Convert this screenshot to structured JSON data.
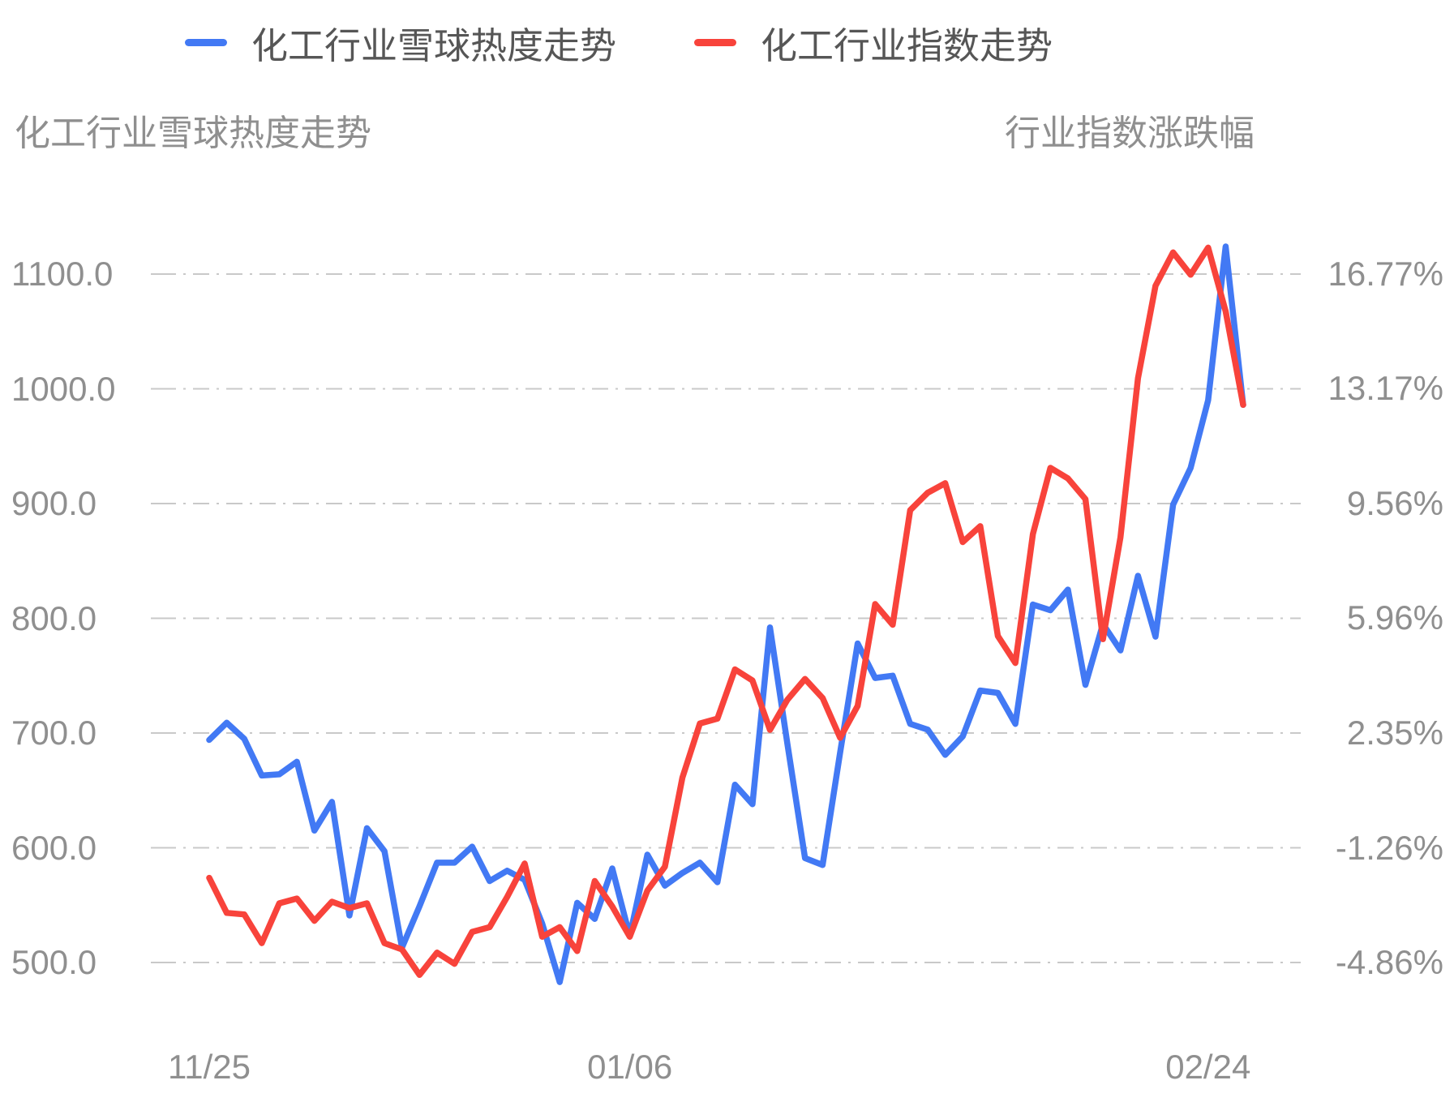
{
  "colors": {
    "heat_line": "#4279F4",
    "index_line": "#F8433B",
    "grid": "#c9c9c9",
    "tick_text": "#8f8f8f",
    "legend_text": "#565656"
  },
  "legend": {
    "items": [
      {
        "label": "化工行业雪球热度走势",
        "color": "#4279F4"
      },
      {
        "label": "化工行业指数走势",
        "color": "#F8433B"
      }
    ]
  },
  "left_axis_title": "化工行业雪球热度走势",
  "right_axis_title": "行业指数涨跌幅",
  "chart_data": {
    "type": "line",
    "title": "",
    "xlabel": "",
    "ylabel_left": "化工行业雪球热度走势",
    "ylabel_right": "行业指数涨跌幅",
    "grid": true,
    "grid_style": "dash-dot",
    "legend_position": "top",
    "x_tick_labels": [
      {
        "label": "11/25",
        "index": 0
      },
      {
        "label": "01/06",
        "index": 24
      },
      {
        "label": "02/24",
        "index": 57
      }
    ],
    "left_axis": {
      "tick_labels": [
        "1100.0",
        "1000.0",
        "900.0",
        "800.0",
        "700.0",
        "600.0",
        "500.0"
      ],
      "tick_values": [
        1100,
        1000,
        900,
        800,
        700,
        600,
        500
      ],
      "range": [
        500,
        1100
      ]
    },
    "right_axis": {
      "tick_labels": [
        "16.77%",
        "13.17%",
        "9.56%",
        "5.96%",
        "2.35%",
        "-1.26%",
        "-4.86%"
      ],
      "tick_values": [
        16.77,
        13.17,
        9.56,
        5.96,
        2.35,
        -1.26,
        -4.86
      ],
      "range": [
        -4.86,
        16.77
      ]
    },
    "series": [
      {
        "name": "化工行业雪球热度走势",
        "axis": "left",
        "color": "#4279F4",
        "values": [
          694,
          709,
          695,
          663,
          664,
          675,
          615,
          640,
          541,
          617,
          597,
          513,
          549,
          587,
          587,
          601,
          571,
          580,
          572,
          534,
          483,
          552,
          538,
          582,
          523,
          594,
          567,
          578,
          587,
          570,
          655,
          638,
          792,
          690,
          591,
          585,
          683,
          778,
          748,
          750,
          708,
          703,
          681,
          697,
          737,
          735,
          708,
          812,
          807,
          825,
          742,
          795,
          772,
          837,
          784,
          899,
          931,
          990,
          1124,
          986
        ]
      },
      {
        "name": "化工行业指数走势",
        "axis": "right",
        "color": "#F8433B",
        "values": [
          -2.2,
          -3.3,
          -3.35,
          -4.25,
          -3.0,
          -2.85,
          -3.55,
          -2.95,
          -3.15,
          -3.0,
          -4.25,
          -4.45,
          -5.25,
          -4.55,
          -4.9,
          -3.9,
          -3.75,
          -2.8,
          -1.75,
          -4.05,
          -3.75,
          -4.5,
          -2.3,
          -3.1,
          -4.05,
          -2.6,
          -1.85,
          0.95,
          2.65,
          2.8,
          4.35,
          4.0,
          2.45,
          3.4,
          4.05,
          3.45,
          2.2,
          3.2,
          6.4,
          5.75,
          9.35,
          9.9,
          10.2,
          8.35,
          8.85,
          5.4,
          4.55,
          8.6,
          10.68,
          10.35,
          9.7,
          5.3,
          8.5,
          13.5,
          16.4,
          17.45,
          16.75,
          17.6,
          15.6,
          12.66
        ]
      }
    ]
  }
}
